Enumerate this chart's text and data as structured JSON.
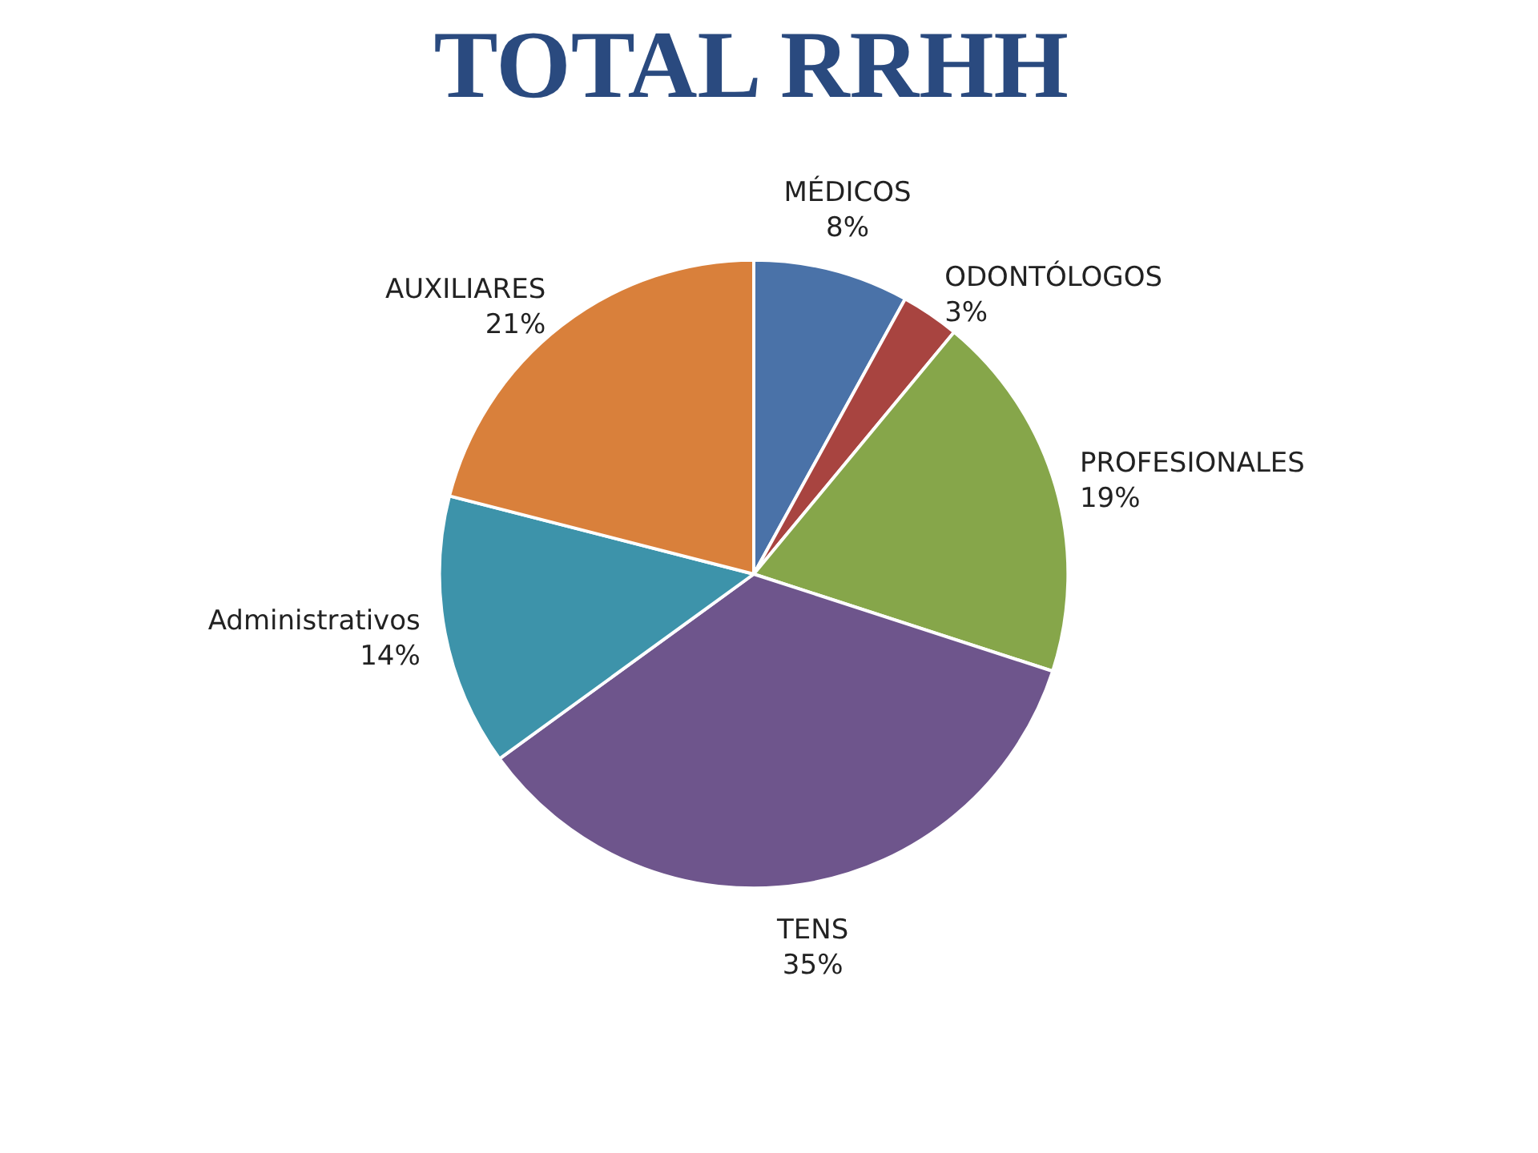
{
  "chart_data": {
    "type": "pie",
    "title": "TOTAL RRHH",
    "categories": [
      "MÉDICOS",
      "ODONTÓLOGOS",
      "PROFESIONALES",
      "TENS",
      "Administrativos",
      "AUXILIARES"
    ],
    "values": [
      8,
      3,
      19,
      35,
      14,
      21
    ],
    "value_labels": [
      "8%",
      "3%",
      "19%",
      "35%",
      "14%",
      "21%"
    ],
    "colors": [
      "#4a72a8",
      "#a84440",
      "#86a64a",
      "#6e558c",
      "#3d93aa",
      "#d9803b"
    ],
    "data_labels": true
  }
}
